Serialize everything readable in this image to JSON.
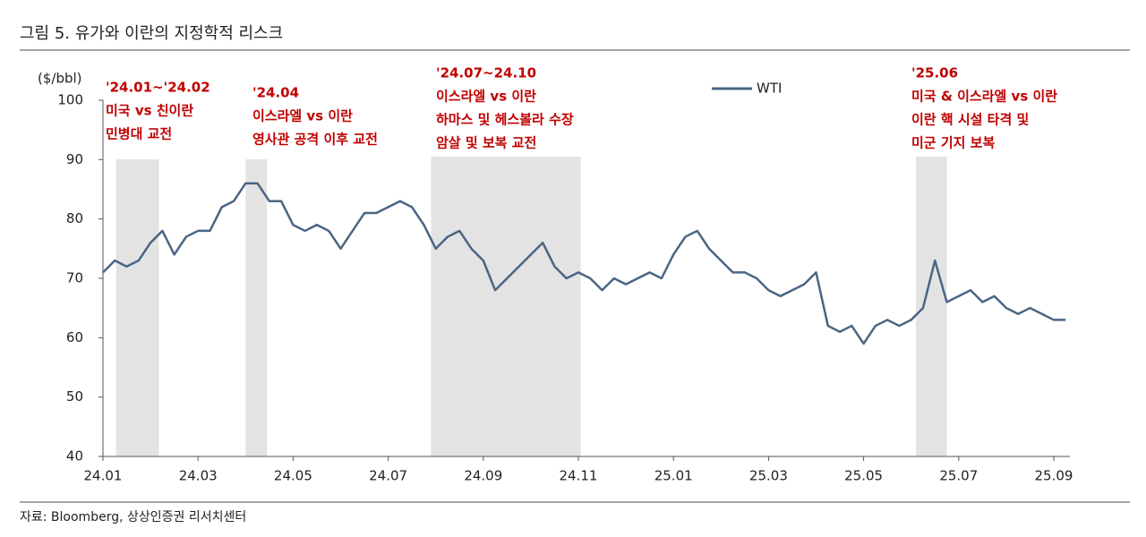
{
  "chart_data": {
    "type": "line",
    "title": "그림 5. 유가와 이란의 지정학적 리스크",
    "y_label": "($/bbl)",
    "source": "자료: Bloomberg, 상상인증권 리서치센터",
    "categories": [
      "24.01",
      null,
      null,
      null,
      null,
      null,
      null,
      null,
      "24.03",
      null,
      null,
      null,
      null,
      null,
      null,
      null,
      "24.05",
      null,
      null,
      null,
      null,
      null,
      null,
      null,
      "24.07",
      null,
      null,
      null,
      null,
      null,
      null,
      null,
      "24.09",
      null,
      null,
      null,
      null,
      null,
      null,
      null,
      "24.11",
      null,
      null,
      null,
      null,
      null,
      null,
      null,
      "25.01",
      null,
      null,
      null,
      null,
      null,
      null,
      null,
      "25.03",
      null,
      null,
      null,
      null,
      null,
      null,
      null,
      "25.05",
      null,
      null,
      null,
      null,
      null,
      null,
      null,
      "25.07",
      null,
      null,
      null,
      null,
      null,
      null,
      null,
      "25.09",
      null
    ],
    "series": [
      {
        "name": "WTI",
        "color": "#4a6584",
        "values": [
          71,
          73,
          72,
          73,
          76,
          78,
          74,
          77,
          78,
          78,
          82,
          83,
          86,
          86,
          83,
          83,
          79,
          78,
          79,
          78,
          75,
          78,
          81,
          81,
          82,
          83,
          82,
          79,
          75,
          77,
          78,
          75,
          73,
          68,
          70,
          72,
          74,
          76,
          72,
          70,
          71,
          70,
          68,
          70,
          69,
          70,
          71,
          70,
          74,
          77,
          78,
          75,
          73,
          71,
          71,
          70,
          68,
          67,
          68,
          69,
          71,
          62,
          61,
          62,
          59,
          62,
          63,
          62,
          63,
          65,
          73,
          66,
          67,
          68,
          66,
          67,
          65,
          64,
          65,
          64,
          63,
          63
        ]
      }
    ],
    "ylim": [
      40,
      100
    ],
    "yticks": [
      40,
      50,
      60,
      70,
      80,
      90,
      100
    ],
    "grid": false,
    "annotations": [
      {
        "lines": [
          "'24.01~'24.02",
          "미국 vs 친이란",
          "민병대 교전"
        ],
        "span": [
          1.1,
          4.7
        ]
      },
      {
        "lines": [
          "'24.04",
          "이스라엘 vs 이란",
          "영사관 공격 이후 교전"
        ],
        "span": [
          12.0,
          13.8
        ]
      },
      {
        "lines": [
          "'24.07~24.10",
          "이스라엘 vs 이란",
          "하마스 및 헤스볼라 수장",
          "암살 및 보복 교전"
        ],
        "span": [
          27.6,
          40.2
        ]
      },
      {
        "lines": [
          "'25.06",
          "미국 & 이스라엘 vs 이란",
          "이란 핵 시설 타격 및",
          "미군 기지 보복"
        ],
        "span": [
          68.4,
          71.0
        ]
      }
    ]
  }
}
